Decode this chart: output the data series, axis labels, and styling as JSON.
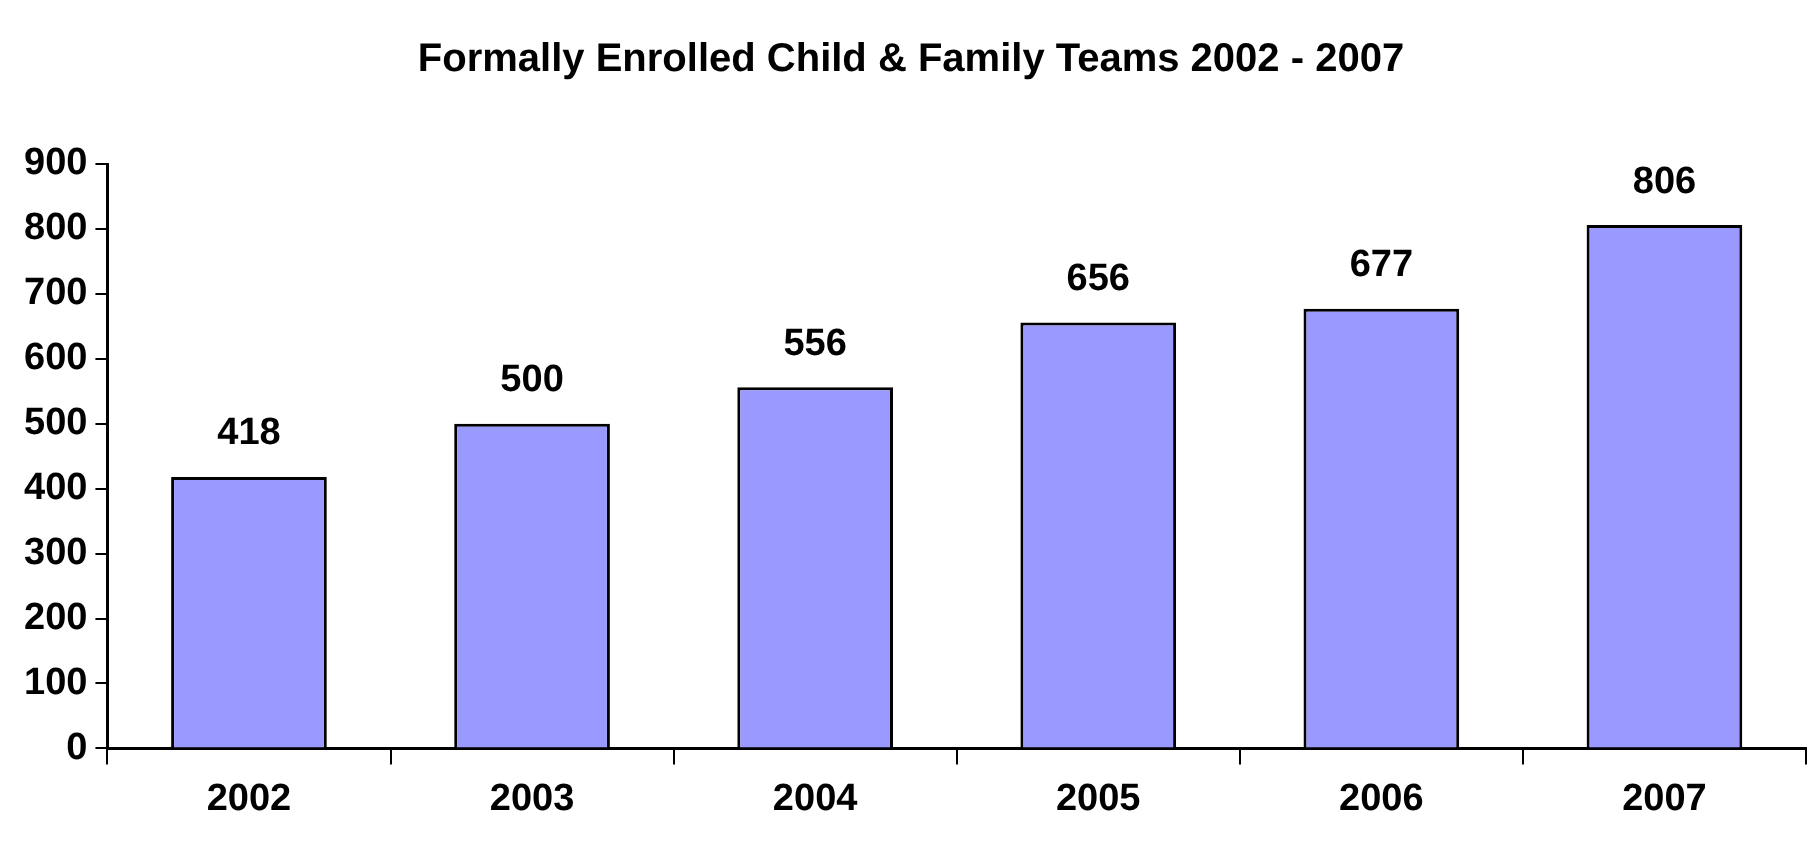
{
  "chart_data": {
    "type": "bar",
    "title": "Formally Enrolled Child & Family Teams 2002 - 2007",
    "categories": [
      "2002",
      "2003",
      "2004",
      "2005",
      "2006",
      "2007"
    ],
    "values": [
      418,
      500,
      556,
      656,
      677,
      806
    ],
    "color": "#9999ff",
    "ylim": [
      0,
      900
    ],
    "yticks": [
      0,
      100,
      200,
      300,
      400,
      500,
      600,
      700,
      800,
      900
    ],
    "grid": false,
    "legend": false,
    "data_labels": true
  }
}
